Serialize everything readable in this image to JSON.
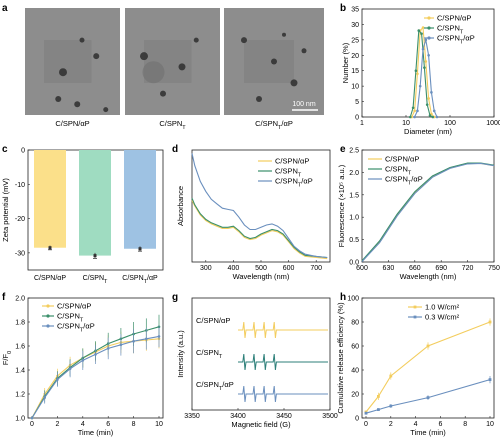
{
  "colors": {
    "yellow": "#f3cd5e",
    "green": "#3b8f6a",
    "blue": "#6a8fbe",
    "teal": "#2c7f79",
    "bar_yellow": "#fbe08a",
    "bar_green": "#9fdcc1",
    "bar_blue": "#9ec2e3"
  },
  "panels": {
    "a": {
      "label": "a",
      "captions": [
        "C/SPN/αP",
        "C/SPNT",
        "C/SPNT/αP"
      ],
      "scale_bar": "100 nm"
    },
    "b": {
      "label": "b"
    },
    "c": {
      "label": "c"
    },
    "d": {
      "label": "d"
    },
    "e": {
      "label": "e"
    },
    "f": {
      "label": "f"
    },
    "g": {
      "label": "g"
    },
    "h": {
      "label": "h"
    }
  },
  "chart_data": [
    {
      "panel": "b",
      "type": "line",
      "xlabel": "Diameter (nm)",
      "ylabel": "Number (%)",
      "xscale": "log",
      "xlim": [
        1,
        1000
      ],
      "ylim": [
        0,
        35
      ],
      "xticks": [
        "1",
        "10",
        "100",
        "1000"
      ],
      "yticks": [
        "0",
        "5",
        "10",
        "15",
        "20",
        "25",
        "30",
        "35"
      ],
      "legend": "top-right",
      "series": [
        {
          "name": "C/SPN/αP",
          "x": [
            13.5,
            15.7,
            18.2,
            21,
            24.4,
            28.2,
            32.7,
            37.8,
            43.8
          ],
          "values": [
            0,
            2,
            14,
            28,
            29,
            18,
            6,
            1,
            0
          ]
        },
        {
          "name": "C/SPNT",
          "x": [
            12.5,
            14.5,
            16.8,
            19.5,
            22.6,
            26.2,
            30.3,
            35.1,
            40.6
          ],
          "values": [
            0,
            3,
            15,
            28,
            27,
            16,
            4,
            0.5,
            0
          ]
        },
        {
          "name": "C/SPNT/αP",
          "x": [
            15.7,
            18.2,
            21,
            24.4,
            28.2,
            32.7,
            37.8,
            43.8,
            50.7
          ],
          "values": [
            0,
            2,
            10,
            22,
            25,
            20,
            8,
            2,
            0
          ]
        }
      ]
    },
    {
      "panel": "c",
      "type": "bar",
      "ylabel": "Zeta potential (mV)",
      "ylim": [
        -35,
        0
      ],
      "yticks": [
        "0",
        "-10",
        "-20",
        "-30"
      ],
      "categories": [
        "C/SPN/αP",
        "C/SPNT",
        "C/SPNT/αP"
      ],
      "values": [
        -28.5,
        -30.8,
        -28.8
      ],
      "errors": [
        0.6,
        0.8,
        0.7
      ]
    },
    {
      "panel": "d",
      "type": "line",
      "xlabel": "Wavelength (nm)",
      "ylabel": "Absorbance",
      "xlim": [
        250,
        750
      ],
      "xticks": [
        "300",
        "400",
        "500",
        "600",
        "700"
      ],
      "legend": "top-right",
      "series": [
        {
          "name": "C/SPN/αP",
          "x": [
            250,
            260,
            280,
            300,
            320,
            340,
            360,
            380,
            400,
            420,
            440,
            460,
            480,
            500,
            520,
            540,
            560,
            580,
            600,
            620,
            640,
            660,
            700,
            740
          ],
          "values": [
            0.55,
            0.5,
            0.42,
            0.37,
            0.34,
            0.32,
            0.3,
            0.3,
            0.31,
            0.27,
            0.22,
            0.2,
            0.21,
            0.24,
            0.26,
            0.28,
            0.27,
            0.24,
            0.18,
            0.12,
            0.08,
            0.05,
            0.04,
            0.03
          ]
        },
        {
          "name": "C/SPNT",
          "x": [
            250,
            260,
            280,
            300,
            320,
            340,
            360,
            380,
            400,
            420,
            440,
            460,
            480,
            500,
            520,
            540,
            560,
            580,
            600,
            620,
            640,
            660,
            700,
            740
          ],
          "values": [
            0.57,
            0.51,
            0.43,
            0.38,
            0.35,
            0.33,
            0.31,
            0.31,
            0.32,
            0.28,
            0.23,
            0.21,
            0.22,
            0.25,
            0.27,
            0.29,
            0.28,
            0.25,
            0.19,
            0.13,
            0.09,
            0.06,
            0.05,
            0.04
          ]
        },
        {
          "name": "C/SPNT/αP",
          "x": [
            250,
            260,
            280,
            300,
            320,
            340,
            360,
            380,
            400,
            420,
            440,
            460,
            480,
            500,
            520,
            540,
            560,
            580,
            600,
            620,
            640,
            660,
            700,
            740
          ],
          "values": [
            0.97,
            0.86,
            0.72,
            0.63,
            0.56,
            0.52,
            0.48,
            0.47,
            0.46,
            0.4,
            0.33,
            0.29,
            0.29,
            0.31,
            0.33,
            0.34,
            0.32,
            0.28,
            0.21,
            0.14,
            0.1,
            0.07,
            0.05,
            0.04
          ]
        }
      ]
    },
    {
      "panel": "e",
      "type": "line",
      "xlabel": "Wavelength (nm)",
      "ylabel": "Fluorescence (×10⁵ a.u.)",
      "xlim": [
        600,
        750
      ],
      "ylim": [
        0,
        2.5
      ],
      "xticks": [
        "600",
        "630",
        "660",
        "690",
        "720",
        "750"
      ],
      "yticks": [
        "0.0",
        "0.5",
        "1.0",
        "1.5",
        "2.0",
        "2.5"
      ],
      "legend": "top-left",
      "series": [
        {
          "name": "C/SPN/αP",
          "x": [
            600,
            620,
            640,
            660,
            680,
            700,
            720,
            735,
            750
          ],
          "values": [
            0.02,
            0.45,
            1.05,
            1.55,
            1.9,
            2.1,
            2.2,
            2.2,
            2.15
          ]
        },
        {
          "name": "C/SPNT",
          "x": [
            600,
            620,
            640,
            660,
            680,
            700,
            720,
            735,
            750
          ],
          "values": [
            0.03,
            0.47,
            1.07,
            1.57,
            1.92,
            2.11,
            2.21,
            2.21,
            2.16
          ]
        },
        {
          "name": "C/SPNT/αP",
          "x": [
            600,
            620,
            640,
            660,
            680,
            700,
            720,
            735,
            750
          ],
          "values": [
            0.01,
            0.43,
            1.03,
            1.53,
            1.89,
            2.09,
            2.19,
            2.2,
            2.15
          ]
        }
      ]
    },
    {
      "panel": "f",
      "type": "line",
      "xlabel": "Time (min)",
      "ylabel": "F/F0",
      "xlim": [
        0,
        10
      ],
      "ylim": [
        1.0,
        2.0
      ],
      "xticks": [
        "0",
        "2",
        "4",
        "6",
        "8",
        "10"
      ],
      "yticks": [
        "1.0",
        "1.2",
        "1.4",
        "1.6",
        "1.8",
        "2.0"
      ],
      "legend": "top-left",
      "series": [
        {
          "name": "C/SPN/αP",
          "x": [
            0,
            1,
            2,
            3,
            4,
            5,
            6,
            7,
            8,
            9,
            10
          ],
          "values": [
            1.0,
            1.2,
            1.35,
            1.44,
            1.5,
            1.55,
            1.6,
            1.63,
            1.64,
            1.65,
            1.66
          ],
          "errors": [
            0,
            0.05,
            0.06,
            0.07,
            0.08,
            0.08,
            0.09,
            0.09,
            0.1,
            0.09,
            0.08
          ]
        },
        {
          "name": "C/SPNT",
          "x": [
            0,
            1,
            2,
            3,
            4,
            5,
            6,
            7,
            8,
            9,
            10
          ],
          "values": [
            1.0,
            1.18,
            1.33,
            1.42,
            1.5,
            1.56,
            1.62,
            1.66,
            1.7,
            1.73,
            1.76
          ],
          "errors": [
            0,
            0.05,
            0.06,
            0.07,
            0.08,
            0.08,
            0.09,
            0.09,
            0.1,
            0.1,
            0.1
          ]
        },
        {
          "name": "C/SPNT/αP",
          "x": [
            0,
            1,
            2,
            3,
            4,
            5,
            6,
            7,
            8,
            9,
            10
          ],
          "values": [
            1.0,
            1.17,
            1.32,
            1.41,
            1.48,
            1.53,
            1.58,
            1.61,
            1.64,
            1.66,
            1.68
          ],
          "errors": [
            0,
            0.05,
            0.06,
            0.07,
            0.08,
            0.08,
            0.09,
            0.09,
            0.1,
            0.09,
            0.09
          ]
        }
      ]
    },
    {
      "panel": "g",
      "type": "line",
      "xlabel": "Magnetic field (G)",
      "ylabel": "Intensity (a.u.)",
      "xlim": [
        3350,
        3500
      ],
      "xticks": [
        "3350",
        "3400",
        "3450",
        "3500"
      ],
      "traces": [
        {
          "name": "C/SPN/αP",
          "peaks": [
            3407,
            3418,
            3429,
            3440
          ]
        },
        {
          "name": "C/SPNT",
          "peaks": [
            3407,
            3418,
            3429,
            3440
          ]
        },
        {
          "name": "C/SPNT/αP",
          "peaks": [
            3407,
            3418,
            3429,
            3440
          ]
        }
      ]
    },
    {
      "panel": "h",
      "type": "line",
      "xlabel": "Time (min)",
      "ylabel": "Cumulative release efficiency (%)",
      "xlim": [
        0,
        10
      ],
      "ylim": [
        0,
        100
      ],
      "xticks": [
        "0",
        "2",
        "4",
        "6",
        "8",
        "10"
      ],
      "yticks": [
        "0",
        "20",
        "40",
        "60",
        "80",
        "100"
      ],
      "legend": "top-left",
      "series": [
        {
          "name": "1.0 W/cm²",
          "x": [
            0,
            1,
            2,
            5,
            10
          ],
          "values": [
            5,
            18,
            35,
            60,
            80
          ],
          "errors": [
            1,
            3,
            3,
            3,
            3
          ]
        },
        {
          "name": "0.3 W/cm²",
          "x": [
            0,
            1,
            2,
            5,
            10
          ],
          "values": [
            4,
            7,
            10,
            17,
            32
          ],
          "errors": [
            1,
            1,
            1.5,
            2,
            3
          ]
        }
      ]
    }
  ]
}
